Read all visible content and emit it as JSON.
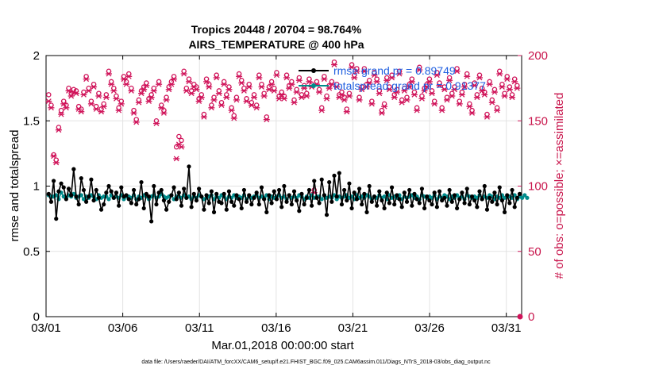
{
  "colors": {
    "rmse": "#000000",
    "spread": "#008b8b",
    "obs": "#d0145a",
    "legend_text": "#1f5fe0",
    "grid": "#e3e3e3"
  },
  "chart_data": {
    "type": "line",
    "title_line1": "Tropics 20448 / 20704 = 98.764%",
    "title_line2": "AIRS_TEMPERATURE @ 400 hPa",
    "xlabel": "Mar.01,2018 00:00:00 start",
    "ylabel_left": "rmse and totalspread",
    "ylabel_right": "# of obs: o=possible; ×=assimilated",
    "xlim": [
      1,
      32
    ],
    "ylim_left": [
      0,
      2
    ],
    "ylim_right": [
      0,
      200
    ],
    "x_ticks": [
      1,
      6,
      11,
      16,
      21,
      26,
      31
    ],
    "x_tick_labels": [
      "03/01",
      "03/06",
      "03/11",
      "03/16",
      "03/21",
      "03/26",
      "03/31"
    ],
    "y_ticks_left": [
      0,
      0.5,
      1,
      1.5,
      2
    ],
    "y_tick_labels_left": [
      "0",
      "0.5",
      "1",
      "1.5",
      "2"
    ],
    "y_ticks_right": [
      0,
      50,
      100,
      150,
      200
    ],
    "y_tick_labels_right": [
      "0",
      "50",
      "100",
      "150",
      "200"
    ],
    "grid": true,
    "legend": {
      "location": "top-right",
      "entries": [
        "rmse grand pr = 0.89749",
        "totalspread grand pr = 0.91377"
      ]
    },
    "footnote": "data file: /Users/raeder/DAI/ATM_forcXX/CAM6_setup/f.e21.FHIST_BGC.f09_025.CAM6assim.011/Diags_NTrS_2018-03/obs_diag_output.nc",
    "rmse": [
      0.94,
      0.88,
      1.04,
      0.75,
      0.96,
      1.02,
      0.99,
      0.9,
      0.98,
      0.93,
      1.13,
      0.92,
      0.86,
      1.06,
      0.97,
      0.88,
      0.92,
      1.05,
      0.89,
      0.97,
      0.91,
      0.82,
      0.86,
      0.95,
      1.0,
      0.96,
      0.91,
      0.95,
      0.85,
      0.99,
      0.92,
      0.93,
      0.9,
      0.87,
      0.97,
      0.86,
      0.9,
      1.03,
      0.83,
      0.94,
      0.92,
      0.73,
      1.0,
      0.86,
      0.95,
      0.97,
      0.89,
      0.82,
      0.88,
      0.93,
      0.99,
      0.9,
      0.95,
      0.85,
      0.98,
      0.91,
      1.15,
      0.84,
      0.94,
      0.89,
      0.98,
      0.92,
      0.82,
      0.93,
      0.87,
      0.96,
      0.8,
      0.94,
      0.88,
      0.87,
      0.94,
      0.82,
      0.96,
      0.88,
      0.85,
      0.93,
      0.9,
      0.83,
      0.97,
      0.88,
      0.93,
      0.86,
      0.91,
      0.95,
      0.86,
      0.99,
      0.9,
      0.8,
      0.93,
      0.87,
      0.96,
      0.9,
      0.97,
      0.84,
      1.0,
      0.88,
      0.93,
      0.86,
      0.96,
      0.89,
      0.81,
      0.94,
      0.86,
      0.91,
      0.97,
      0.85,
      1.04,
      0.91,
      0.87,
      1.05,
      0.93,
      0.78,
      1.03,
      0.88,
      1.08,
      0.92,
      1.1,
      0.86,
      0.97,
      0.89,
      1.02,
      0.83,
      0.95,
      0.9,
      0.98,
      0.86,
      0.94,
      0.8,
      1.0,
      0.88,
      0.92,
      0.85,
      0.96,
      0.89,
      0.83,
      0.95,
      0.87,
      0.99,
      0.86,
      0.93,
      0.9,
      0.84,
      0.95,
      0.88,
      0.97,
      0.85,
      0.94,
      0.9,
      0.87,
      0.98,
      0.83,
      0.92,
      0.89,
      0.86,
      0.95,
      0.84,
      0.96,
      0.89,
      0.91,
      0.85,
      0.97,
      0.88,
      0.93,
      0.83,
      0.9,
      0.95,
      0.87,
      0.98,
      0.86,
      0.92,
      0.89,
      0.84,
      0.96,
      0.9,
      1.0,
      0.82,
      0.91,
      0.88,
      0.95,
      0.86,
      0.99,
      0.89,
      0.8,
      0.93,
      0.87,
      0.97,
      0.84,
      0.91,
      0.94
    ],
    "totalspread": [
      0.93,
      0.92,
      0.92,
      0.93,
      0.9,
      0.95,
      0.92,
      0.91,
      0.93,
      0.92,
      0.94,
      0.91,
      0.92,
      0.93,
      0.9,
      0.92,
      0.91,
      0.93,
      0.92,
      0.9,
      0.93,
      0.91,
      0.92,
      0.92,
      0.9,
      0.93,
      0.91,
      0.92,
      0.91,
      0.93,
      0.9,
      0.92,
      0.92,
      0.91,
      0.93,
      0.9,
      0.92,
      0.91,
      0.93,
      0.92,
      0.9,
      0.92,
      0.93,
      0.91,
      0.92,
      0.94,
      0.92,
      0.91,
      0.92,
      0.93,
      0.9,
      0.92,
      0.92,
      0.91,
      0.93,
      0.91,
      0.92,
      0.9,
      0.92,
      0.91,
      0.93,
      0.92,
      0.9,
      0.91,
      0.92,
      0.93,
      0.9,
      0.92,
      0.91,
      0.93,
      0.92,
      0.9,
      0.92,
      0.91,
      0.93,
      0.91,
      0.92,
      0.91,
      0.93,
      0.9,
      0.92,
      0.91,
      0.92,
      0.93,
      0.91,
      0.92,
      0.91,
      0.93,
      0.9,
      0.92,
      0.91,
      0.92,
      0.93,
      0.91,
      0.92,
      0.9,
      0.93,
      0.91,
      0.92,
      0.91,
      0.93,
      0.92,
      0.9,
      0.92,
      0.91,
      0.93,
      0.91,
      0.92,
      0.92,
      0.9,
      0.93,
      0.91,
      0.92,
      0.91,
      0.93,
      0.9,
      0.92,
      0.91,
      0.92,
      0.93,
      0.91,
      0.92,
      0.9,
      0.93,
      0.91,
      0.92,
      0.91,
      0.93,
      0.92,
      0.9,
      0.92,
      0.91,
      0.93,
      0.91,
      0.92,
      0.9,
      0.93,
      0.91,
      0.92,
      0.91,
      0.93,
      0.9,
      0.92,
      0.91,
      0.92,
      0.93,
      0.91,
      0.92,
      0.9,
      0.93,
      0.92,
      0.91,
      0.92,
      0.91,
      0.93,
      0.9,
      0.92,
      0.91,
      0.93,
      0.92,
      0.9,
      0.92,
      0.91,
      0.93,
      0.91,
      0.92,
      0.9,
      0.93,
      0.92,
      0.91,
      0.92,
      0.91,
      0.93,
      0.9,
      0.92,
      0.91,
      0.93,
      0.92,
      0.9,
      0.92,
      0.91,
      0.93,
      0.91,
      0.92,
      0.92,
      0.91,
      0.93,
      0.9,
      0.92,
      0.91,
      0.93,
      0.91
    ],
    "obs_possible": [
      170,
      162,
      124,
      120,
      145,
      158,
      165,
      162,
      175,
      171,
      174,
      173,
      161,
      159,
      172,
      184,
      175,
      165,
      178,
      161,
      171,
      159,
      163,
      170,
      188,
      180,
      175,
      169,
      160,
      165,
      184,
      180,
      186,
      175,
      158,
      151,
      166,
      173,
      176,
      179,
      167,
      170,
      175,
      150,
      180,
      162,
      158,
      168,
      176,
      180,
      184,
      130,
      138,
      135,
      188,
      175,
      182,
      173,
      178,
      176,
      167,
      170,
      155,
      182,
      178,
      162,
      168,
      185,
      173,
      164,
      180,
      170,
      176,
      160,
      154,
      168,
      186,
      181,
      175,
      167,
      178,
      164,
      170,
      162,
      185,
      178,
      171,
      153,
      176,
      180,
      175,
      187,
      169,
      172,
      169,
      185,
      177,
      180,
      166,
      174,
      183,
      170,
      177,
      171,
      182,
      178,
      97,
      180,
      174,
      160,
      184,
      169,
      177,
      180,
      195,
      178,
      170,
      172,
      168,
      159,
      171,
      193,
      185,
      190,
      168,
      176,
      190,
      178,
      181,
      165,
      187,
      182,
      173,
      158,
      163,
      183,
      176,
      185,
      170,
      174,
      188,
      166,
      175,
      168,
      178,
      182,
      172,
      160,
      191,
      169,
      175,
      178,
      182,
      173,
      165,
      187,
      179,
      160,
      176,
      168,
      183,
      171,
      176,
      190,
      165,
      172,
      178,
      186,
      163,
      158,
      179,
      170,
      185,
      175,
      172,
      155,
      180,
      166,
      174,
      160,
      188,
      178,
      171,
      184,
      176,
      170,
      182,
      177
    ],
    "obs_assimilated": [
      165,
      160,
      123,
      118,
      143,
      155,
      163,
      160,
      173,
      169,
      172,
      171,
      159,
      157,
      170,
      182,
      173,
      163,
      176,
      159,
      169,
      157,
      161,
      168,
      186,
      178,
      173,
      167,
      158,
      163,
      182,
      178,
      184,
      173,
      156,
      149,
      164,
      171,
      174,
      177,
      165,
      168,
      173,
      148,
      178,
      160,
      156,
      166,
      174,
      178,
      182,
      121,
      132,
      130,
      186,
      173,
      180,
      171,
      176,
      174,
      165,
      168,
      153,
      180,
      176,
      160,
      166,
      183,
      171,
      162,
      178,
      168,
      174,
      158,
      152,
      166,
      184,
      179,
      173,
      165,
      176,
      162,
      168,
      160,
      183,
      176,
      169,
      151,
      174,
      178,
      173,
      185,
      167,
      170,
      167,
      183,
      175,
      178,
      164,
      172,
      181,
      168,
      175,
      169,
      180,
      176,
      95,
      178,
      172,
      158,
      182,
      167,
      175,
      178,
      193,
      176,
      168,
      170,
      166,
      157,
      169,
      191,
      183,
      188,
      166,
      174,
      188,
      176,
      179,
      163,
      185,
      180,
      171,
      156,
      161,
      181,
      174,
      183,
      168,
      172,
      186,
      164,
      173,
      166,
      176,
      180,
      170,
      158,
      189,
      167,
      173,
      176,
      180,
      171,
      163,
      185,
      177,
      158,
      174,
      166,
      181,
      169,
      174,
      188,
      163,
      170,
      176,
      184,
      161,
      156,
      177,
      168,
      183,
      173,
      170,
      153,
      178,
      164,
      172,
      158,
      186,
      176,
      169,
      182,
      174,
      168,
      180,
      175
    ]
  }
}
